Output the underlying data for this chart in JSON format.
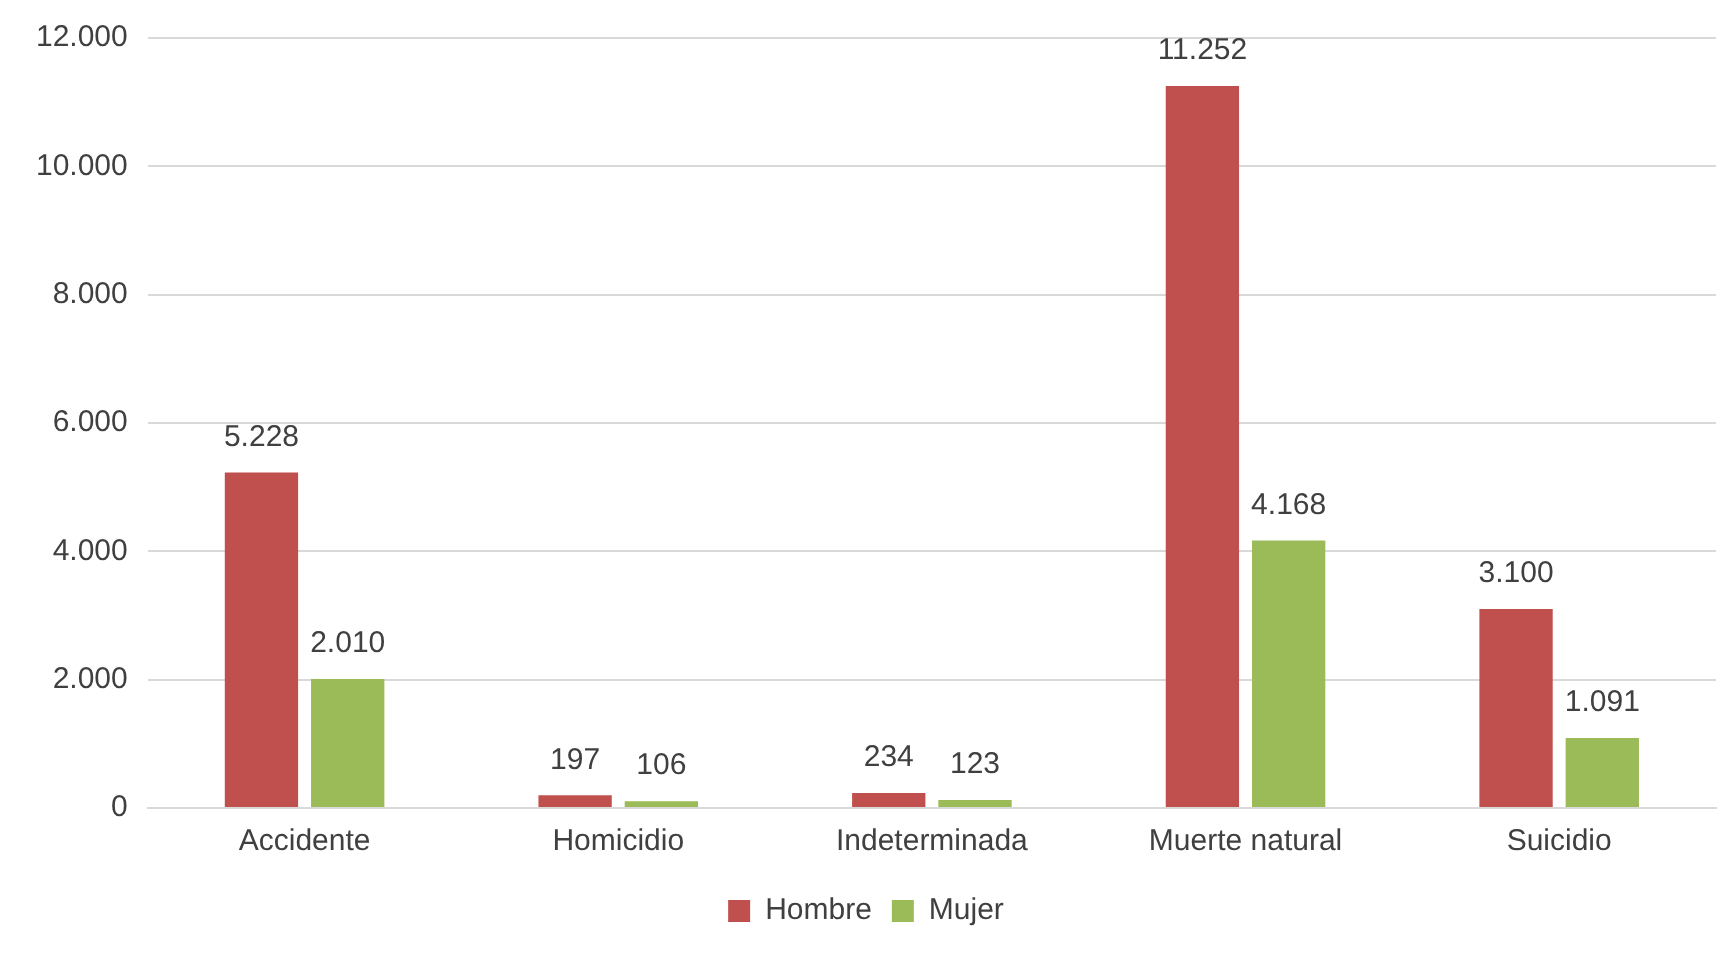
{
  "chart_data": {
    "type": "bar",
    "categories": [
      "Accidente",
      "Homicidio",
      "Indeterminada",
      "Muerte natural",
      "Suicidio"
    ],
    "series": [
      {
        "name": "Hombre",
        "color": "#c0504d",
        "values": [
          5228,
          197,
          234,
          11252,
          3100
        ],
        "value_labels": [
          "5.228",
          "197",
          "234",
          "11.252",
          "3.100"
        ]
      },
      {
        "name": "Mujer",
        "color": "#9bbb59",
        "values": [
          2010,
          106,
          123,
          4168,
          1091
        ],
        "value_labels": [
          "2.010",
          "106",
          "123",
          "4.168",
          "1.091"
        ]
      }
    ],
    "ylim": [
      0,
      12000
    ],
    "yticks": [
      {
        "value": 0,
        "label": "0"
      },
      {
        "value": 2000,
        "label": "2.000"
      },
      {
        "value": 4000,
        "label": "4.000"
      },
      {
        "value": 6000,
        "label": "6.000"
      },
      {
        "value": 8000,
        "label": "8.000"
      },
      {
        "value": 10000,
        "label": "10.000"
      },
      {
        "value": 12000,
        "label": "12.000"
      }
    ],
    "grid": "y",
    "legend": "bottom"
  }
}
